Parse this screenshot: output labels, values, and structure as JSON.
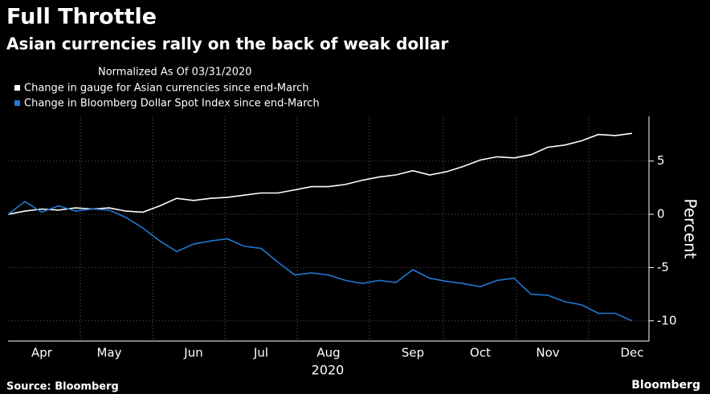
{
  "chart_data": {
    "type": "line",
    "title": "Full Throttle",
    "subtitle": "Asian currencies rally on the back of weak dollar",
    "note": "Normalized As Of 03/31/2020",
    "ylabel": "Percent",
    "xlabel": "2020",
    "source": "Source: Bloomberg",
    "brand": "Bloomberg",
    "categories": [
      null,
      null,
      "Apr",
      null,
      null,
      null,
      "May",
      null,
      null,
      null,
      null,
      "Jun",
      null,
      null,
      null,
      "Jul",
      null,
      null,
      null,
      "Aug",
      null,
      null,
      null,
      null,
      "Sep",
      null,
      null,
      null,
      "Oct",
      null,
      null,
      null,
      "Nov",
      null,
      null,
      null,
      null,
      "Dec"
    ],
    "series": [
      {
        "name": "Change in gauge for Asian currencies since end-March",
        "color": "#ffffff",
        "values": [
          0,
          0.3,
          0.5,
          0.4,
          0.6,
          0.5,
          0.6,
          0.3,
          0.2,
          0.8,
          1.5,
          1.3,
          1.5,
          1.6,
          1.8,
          2.0,
          2.0,
          2.3,
          2.6,
          2.6,
          2.8,
          3.2,
          3.5,
          3.7,
          4.1,
          3.7,
          4.0,
          4.5,
          5.1,
          5.4,
          5.3,
          5.6,
          6.3,
          6.5,
          6.9,
          7.5,
          7.4,
          7.6
        ]
      },
      {
        "name": "Change in Bloomberg Dollar Spot Index since end-March",
        "color": "#1f78d1",
        "values": [
          0,
          1.2,
          0.2,
          0.8,
          0.3,
          0.5,
          0.4,
          -0.3,
          -1.3,
          -2.5,
          -3.5,
          -2.8,
          -2.5,
          -2.3,
          -3.0,
          -3.2,
          -4.5,
          -5.7,
          -5.5,
          -5.7,
          -6.2,
          -6.5,
          -6.2,
          -6.4,
          -5.2,
          -6.0,
          -6.3,
          -6.5,
          -6.8,
          -6.2,
          -6.0,
          -7.5,
          -7.6,
          -8.2,
          -8.5,
          -9.3,
          -9.3,
          -10.0
        ]
      }
    ],
    "ylim": [
      -11.9,
      9.2
    ],
    "yticks": [
      -10,
      -5,
      0,
      5
    ],
    "grid": true
  }
}
